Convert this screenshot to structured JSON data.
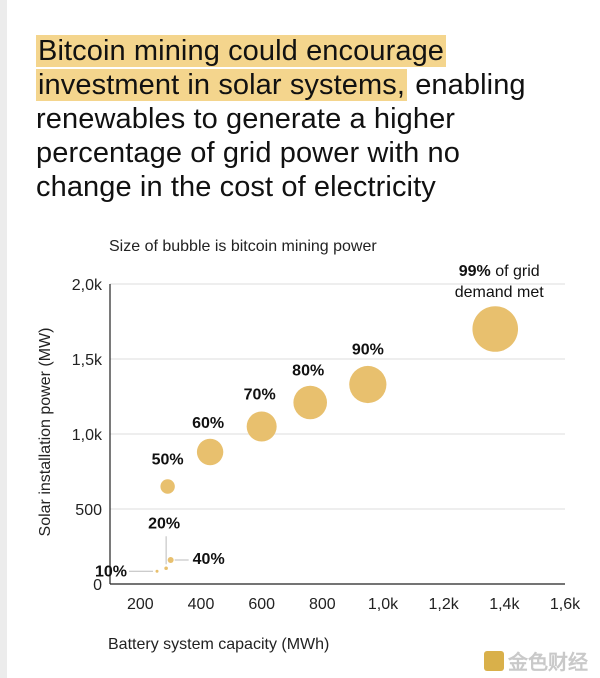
{
  "headline": {
    "highlight": "Bitcoin mining could encourage investment in solar systems,",
    "rest": " enabling renewables to generate a higher percentage of grid power with no change in the cost of electricity"
  },
  "colors": {
    "highlight": "#f4d58d",
    "bubble": "#e8c06e",
    "axis": "#222222",
    "grid": "#dddddd"
  },
  "chart_data": {
    "type": "scatter",
    "subtitle": "Size of bubble is bitcoin mining power",
    "xlabel": "Battery system capacity (MWh)",
    "ylabel": "Solar installation power (MW)",
    "xlim": [
      100,
      1600
    ],
    "ylim": [
      0,
      2000
    ],
    "x_ticks": [
      {
        "v": 200,
        "label": "200"
      },
      {
        "v": 400,
        "label": "400"
      },
      {
        "v": 600,
        "label": "600"
      },
      {
        "v": 800,
        "label": "800"
      },
      {
        "v": 1000,
        "label": "1,0k"
      },
      {
        "v": 1200,
        "label": "1,2k"
      },
      {
        "v": 1400,
        "label": "1,4k"
      },
      {
        "v": 1600,
        "label": "1,6k"
      }
    ],
    "y_ticks": [
      {
        "v": 0,
        "label": "0"
      },
      {
        "v": 500,
        "label": "500"
      },
      {
        "v": 1000,
        "label": "1,0k"
      },
      {
        "v": 1500,
        "label": "1,5k"
      },
      {
        "v": 2000,
        "label": "2,0k"
      }
    ],
    "grid": true,
    "points": [
      {
        "label": "10%",
        "x": 255,
        "y": 85,
        "size": 2
      },
      {
        "label": "20%",
        "x": 285,
        "y": 105,
        "size": 3
      },
      {
        "label": "40%",
        "x": 300,
        "y": 160,
        "size": 5
      },
      {
        "label": "50%",
        "x": 290,
        "y": 650,
        "size": 12
      },
      {
        "label": "60%",
        "x": 430,
        "y": 880,
        "size": 22
      },
      {
        "label": "70%",
        "x": 600,
        "y": 1050,
        "size": 25
      },
      {
        "label": "80%",
        "x": 760,
        "y": 1210,
        "size": 28
      },
      {
        "label": "90%",
        "x": 950,
        "y": 1330,
        "size": 31
      },
      {
        "label": "99%",
        "x": 1370,
        "y": 1700,
        "size": 38
      }
    ],
    "annotation_suffix_line1": " of grid",
    "annotation_suffix_line2": "demand met"
  },
  "watermark": "金色财经"
}
